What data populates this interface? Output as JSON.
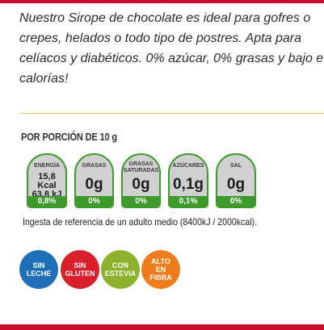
{
  "description": {
    "lines": [
      "Nuestro Sirope de chocolate es ideal para gofres o",
      "crepes, helados o todo tipo de postres. Apta para",
      "celíacos y diabéticos. 0% azúcar, 0% grasas y bajo en",
      "calorías!"
    ]
  },
  "nutrition": {
    "portion_label": "POR PORCIÓN DE 10 g",
    "items": [
      {
        "label": "ENERGÍA",
        "value_line1": "15,8 Kcal",
        "value_line2": "63,8 kJ",
        "percent": "0,8%"
      },
      {
        "label": "GRASAS",
        "value": "0g",
        "percent": "0%"
      },
      {
        "label_line1": "GRASAS",
        "label_line2": "SATURADAS",
        "value": "0g",
        "percent": "0%"
      },
      {
        "label": "AZÚCARES",
        "value": "0,1g",
        "percent": "0,1%"
      },
      {
        "label": "SAL",
        "value": "0g",
        "percent": "0%"
      }
    ],
    "reference_text": "Ingesta de referencia de un adulto medio  (8400kJ / 2000kcal)."
  },
  "badges": [
    {
      "line1": "SIN",
      "line2": "LECHE",
      "color": "#1e6fb8"
    },
    {
      "line1": "SIN",
      "line2": "GLUTEN",
      "color": "#d81f2a"
    },
    {
      "line1": "CON",
      "line2": "ESTEVIA",
      "color": "#8cb12b"
    },
    {
      "line1": "ALTO",
      "line2": "EN",
      "line3": "FIBRA",
      "color": "#ef7b1a"
    }
  ],
  "colors": {
    "accent_red": "#c8102e",
    "nutrition_green": "#3f9a2e"
  }
}
